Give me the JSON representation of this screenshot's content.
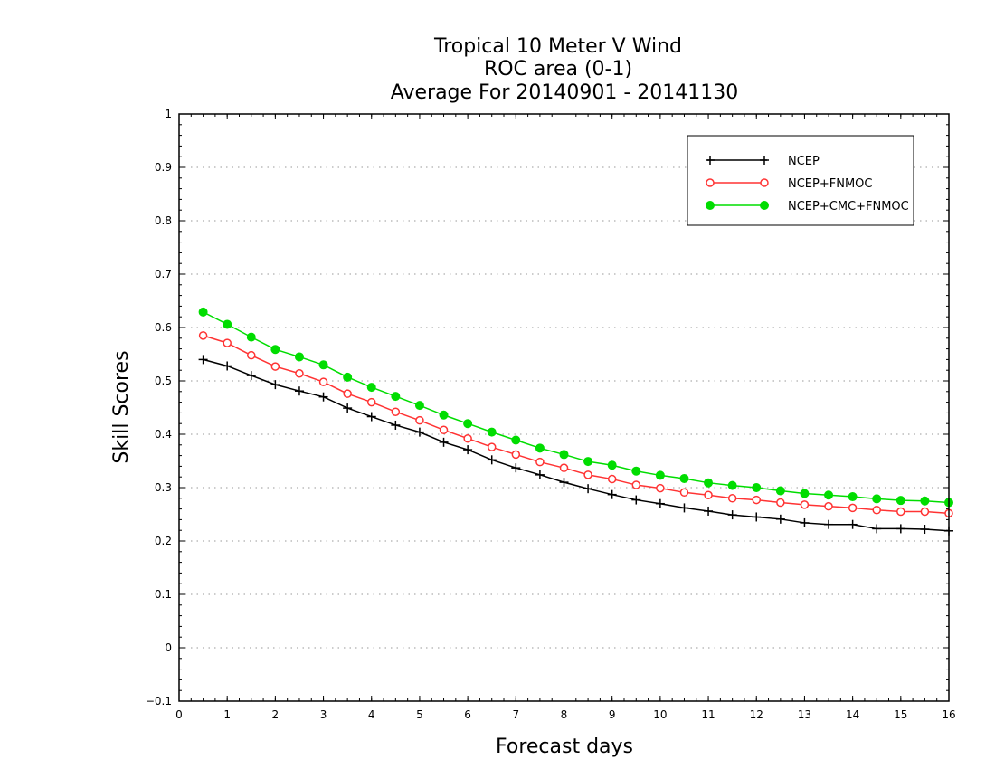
{
  "chart_data": {
    "type": "line",
    "title": [
      "Tropical 10 Meter V Wind",
      "ROC area (0-1)",
      "Average For 20140901 - 20141130"
    ],
    "xlabel": "Forecast days",
    "ylabel": "Skill Scores",
    "xlim": [
      0,
      16
    ],
    "ylim": [
      -0.1,
      1
    ],
    "xticks": [
      "0",
      "1",
      "2",
      "3",
      "4",
      "5",
      "6",
      "7",
      "8",
      "9",
      "10",
      "11",
      "12",
      "13",
      "14",
      "15",
      "16"
    ],
    "yticks": [
      "−0.1",
      "0",
      "0.1",
      "0.2",
      "0.3",
      "0.4",
      "0.5",
      "0.6",
      "0.7",
      "0.8",
      "0.9",
      "1"
    ],
    "grid": true,
    "legend_position": "top-right",
    "x": [
      0.5,
      1,
      1.5,
      2,
      2.5,
      3,
      3.5,
      4,
      4.5,
      5,
      5.5,
      6,
      6.5,
      7,
      7.5,
      8,
      8.5,
      9,
      9.5,
      10,
      10.5,
      11,
      11.5,
      12,
      12.5,
      13,
      13.5,
      14,
      14.5,
      15,
      15.5,
      16
    ],
    "series": [
      {
        "name": "NCEP",
        "color": "#000000",
        "marker": "plus",
        "values": [
          0.54,
          0.528,
          0.51,
          0.493,
          0.481,
          0.47,
          0.449,
          0.433,
          0.417,
          0.404,
          0.385,
          0.371,
          0.352,
          0.337,
          0.324,
          0.31,
          0.298,
          0.287,
          0.277,
          0.27,
          0.262,
          0.256,
          0.249,
          0.245,
          0.241,
          0.234,
          0.231,
          0.231,
          0.223,
          0.223,
          0.222,
          0.219
        ]
      },
      {
        "name": "NCEP+FNMOC",
        "color": "#ff3333",
        "marker": "open-circle",
        "values": [
          0.585,
          0.571,
          0.548,
          0.527,
          0.514,
          0.498,
          0.476,
          0.46,
          0.442,
          0.426,
          0.408,
          0.392,
          0.376,
          0.362,
          0.348,
          0.337,
          0.324,
          0.316,
          0.305,
          0.299,
          0.291,
          0.286,
          0.28,
          0.277,
          0.272,
          0.268,
          0.265,
          0.262,
          0.258,
          0.255,
          0.255,
          0.252
        ]
      },
      {
        "name": "NCEP+CMC+FNMOC",
        "color": "#00dd00",
        "marker": "filled-circle",
        "values": [
          0.629,
          0.606,
          0.582,
          0.559,
          0.545,
          0.53,
          0.507,
          0.488,
          0.471,
          0.454,
          0.436,
          0.42,
          0.404,
          0.389,
          0.374,
          0.362,
          0.349,
          0.342,
          0.331,
          0.323,
          0.317,
          0.309,
          0.304,
          0.3,
          0.294,
          0.289,
          0.286,
          0.283,
          0.279,
          0.276,
          0.275,
          0.272
        ]
      }
    ]
  }
}
